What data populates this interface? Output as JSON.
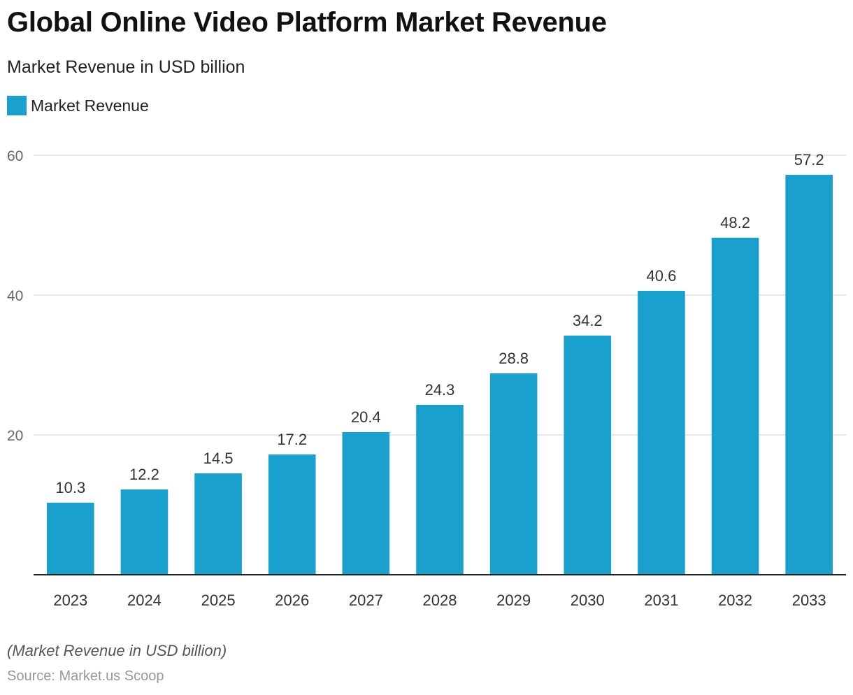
{
  "chart_data": {
    "type": "bar",
    "title": "Global Online Video Platform Market Revenue",
    "subtitle": "Market Revenue in USD billion",
    "categories": [
      "2023",
      "2024",
      "2025",
      "2026",
      "2027",
      "2028",
      "2029",
      "2030",
      "2031",
      "2032",
      "2033"
    ],
    "series": [
      {
        "name": "Market Revenue",
        "values": [
          10.3,
          12.2,
          14.5,
          17.2,
          20.4,
          24.3,
          28.8,
          34.2,
          40.6,
          48.2,
          57.2
        ]
      }
    ],
    "ylim": [
      0,
      60
    ],
    "yticks": [
      20,
      40,
      60
    ],
    "grid": true,
    "legend": "top-left",
    "color": "#19a0cd",
    "footnote": "(Market Revenue in USD billion)",
    "source": "Source: Market.us Scoop"
  }
}
